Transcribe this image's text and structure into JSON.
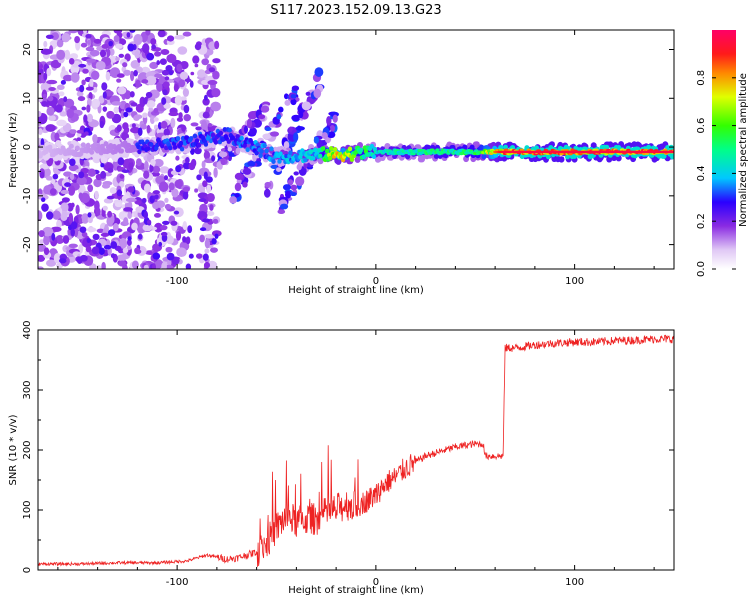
{
  "title": "S117.2023.152.09.13.G23",
  "chart_data": [
    {
      "type": "heatmap",
      "xlabel": "Height of straight line (km)",
      "ylabel": "Frequency (Hz)",
      "xlim": [
        -170,
        150
      ],
      "ylim": [
        -25,
        24
      ],
      "xticks": [
        -100,
        0,
        100
      ],
      "yticks": [
        -20,
        -10,
        0,
        10,
        20
      ],
      "xtick_labels": [
        "-100",
        "0",
        "100"
      ],
      "ytick_labels": [
        "-20",
        "-10",
        "0",
        "10",
        "20"
      ],
      "colorbar": {
        "label": "Normalized spectral amplitude",
        "range": [
          0,
          1
        ],
        "ticks": [
          0.0,
          0.2,
          0.4,
          0.6,
          0.8
        ],
        "tick_labels": [
          "0.0",
          "0.2",
          "0.4",
          "0.6",
          "0.8"
        ],
        "colormap": "rainbow"
      },
      "ridge_line": [
        {
          "x": -170,
          "f": -1.0,
          "amp": 0.2
        },
        {
          "x": -100,
          "f": 0.5,
          "amp": 0.35
        },
        {
          "x": -75,
          "f": 2.5,
          "amp": 0.35
        },
        {
          "x": -50,
          "f": -2.0,
          "amp": 0.4
        },
        {
          "x": -30,
          "f": -1.5,
          "amp": 0.45
        },
        {
          "x": -20,
          "f": -1.5,
          "amp": 0.85
        },
        {
          "x": 0,
          "f": -1.0,
          "amp": 0.5
        },
        {
          "x": 50,
          "f": -1.0,
          "amp": 0.6
        },
        {
          "x": 65,
          "f": -1.0,
          "amp": 0.95
        },
        {
          "x": 100,
          "f": -1.0,
          "amp": 0.95
        },
        {
          "x": 150,
          "f": -1.0,
          "amp": 0.95
        }
      ]
    },
    {
      "type": "line",
      "xlabel": "Height of straight line (km)",
      "ylabel": "SNR (10 * v/v)",
      "xlim": [
        -170,
        150
      ],
      "ylim": [
        0,
        400
      ],
      "xticks": [
        -100,
        0,
        100
      ],
      "yticks": [
        0,
        100,
        200,
        300,
        400
      ],
      "xtick_labels": [
        "-100",
        "0",
        "100"
      ],
      "ytick_labels": [
        "0",
        "100",
        "200",
        "300",
        "400"
      ],
      "line_color": "#ee2222",
      "series": [
        {
          "x": [
            -170,
            -150,
            -130,
            -110,
            -95,
            -85,
            -75,
            -70,
            -60,
            -55,
            -50,
            -45,
            -40,
            -35,
            -30,
            -25,
            -20,
            -15,
            -10,
            -5,
            0,
            5,
            10,
            15,
            20,
            25,
            30,
            35,
            40,
            45,
            50,
            54,
            55,
            60,
            64,
            65,
            70,
            80,
            90,
            100,
            110,
            120,
            130,
            140,
            150
          ],
          "y": [
            10,
            10,
            12,
            12,
            15,
            25,
            18,
            20,
            30,
            45,
            70,
            90,
            80,
            85,
            85,
            95,
            100,
            110,
            105,
            115,
            125,
            145,
            155,
            170,
            180,
            190,
            195,
            200,
            205,
            208,
            210,
            210,
            190,
            190,
            190,
            370,
            370,
            375,
            378,
            380,
            380,
            382,
            383,
            385,
            385
          ]
        }
      ]
    }
  ]
}
